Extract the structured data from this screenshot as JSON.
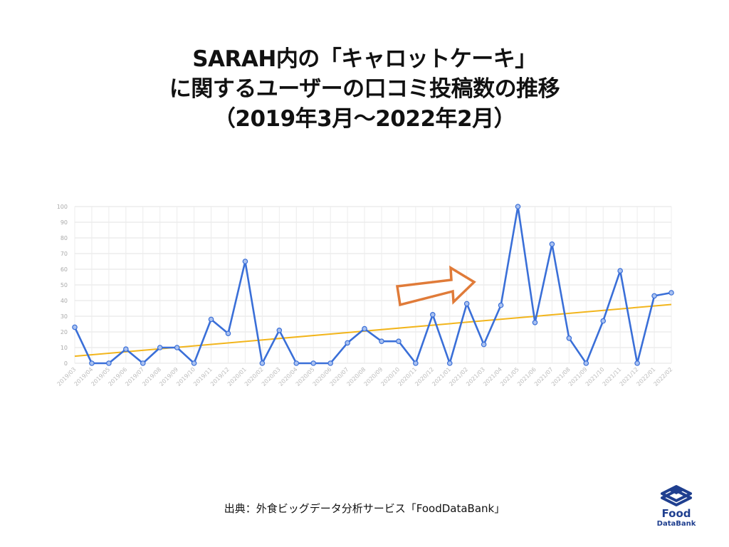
{
  "title": {
    "line1": "SARAH内の「キャロットケーキ」",
    "line2": "に関するユーザーの口コミ投稿数の推移",
    "line3": "（2019年3月〜2022年2月）"
  },
  "source": "出典：外食ビッグデータ分析サービス「FoodDataBank」",
  "logo": {
    "line1": "Food",
    "line2": "DataBank",
    "color": "#1f3f8f",
    "icon": "stacked-database-icon"
  },
  "annotation": {
    "icon": "arrow-right-icon",
    "color": "#e07b39"
  },
  "chart_data": {
    "type": "line",
    "categories": [
      "2019/03",
      "2019/04",
      "2019/05",
      "2019/06",
      "2019/07",
      "2019/08",
      "2019/09",
      "2019/10",
      "2019/11",
      "2019/12",
      "2020/01",
      "2020/02",
      "2020/03",
      "2020/04",
      "2020/05",
      "2020/06",
      "2020/07",
      "2020/08",
      "2020/09",
      "2020/10",
      "2020/11",
      "2020/12",
      "2021/01",
      "2021/02",
      "2021/03",
      "2021/04",
      "2021/05",
      "2021/06",
      "2021/07",
      "2021/08",
      "2021/09",
      "2021/10",
      "2021/11",
      "2021/12",
      "2022/01",
      "2022/02"
    ],
    "series": [
      {
        "color": "#3a6fd8",
        "values": [
          23,
          0,
          0,
          9,
          0,
          10,
          10,
          0,
          28,
          19,
          65,
          0,
          21,
          0,
          0,
          0,
          13,
          22,
          14,
          14,
          0,
          31,
          0,
          38,
          12,
          37,
          100,
          26,
          76,
          16,
          0,
          27,
          59,
          0,
          43,
          45
        ]
      }
    ],
    "trendline": {
      "start": 4.5,
      "end": 37.5,
      "color": "#f2b51c"
    },
    "ylim": [
      0,
      100
    ],
    "yticks": [
      0,
      10,
      20,
      30,
      40,
      50,
      60,
      70,
      80,
      90,
      100
    ],
    "grid": true,
    "legend": "none",
    "xlabel": "",
    "ylabel": ""
  }
}
